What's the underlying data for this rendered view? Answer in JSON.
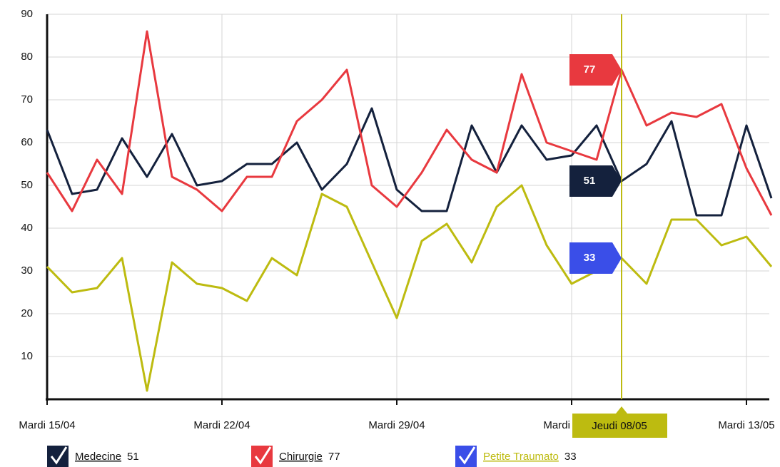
{
  "chart_data": {
    "type": "line",
    "categories": [
      "Mardi 15/04",
      null,
      null,
      null,
      null,
      null,
      null,
      "Mardi 22/04",
      null,
      null,
      null,
      null,
      null,
      null,
      "Mardi 29/04",
      null,
      null,
      null,
      null,
      null,
      null,
      "Mardi 06/05",
      null,
      "Jeudi 08/05",
      null,
      null,
      null,
      null,
      "Mardi 13/05",
      null
    ],
    "cursor_index": 23,
    "ylim": [
      0,
      90
    ],
    "yticks": [
      10,
      20,
      30,
      40,
      50,
      60,
      70,
      80,
      90
    ],
    "grid": true,
    "series": [
      {
        "name": "Medecine",
        "color": "#14213d",
        "marker_color": "#14213d",
        "values": [
          63,
          48,
          49,
          61,
          52,
          62,
          50,
          51,
          55,
          55,
          60,
          49,
          55,
          68,
          49,
          44,
          44,
          64,
          53,
          64,
          56,
          57,
          64,
          51,
          55,
          65,
          43,
          43,
          64,
          47
        ]
      },
      {
        "name": "Chirurgie",
        "color": "#e8393f",
        "marker_color": "#e8393f",
        "values": [
          53,
          44,
          56,
          48,
          86,
          52,
          49,
          44,
          52,
          52,
          65,
          70,
          77,
          50,
          45,
          53,
          63,
          56,
          53,
          76,
          60,
          58,
          56,
          77,
          64,
          67,
          66,
          69,
          54,
          43
        ]
      },
      {
        "name": "Petite Traumato",
        "color": "#bdbb10",
        "marker_color": "#3a4ee8",
        "values": [
          31,
          25,
          26,
          33,
          2,
          32,
          27,
          26,
          23,
          33,
          29,
          48,
          45,
          32,
          19,
          37,
          41,
          32,
          45,
          50,
          36,
          27,
          30,
          33,
          27,
          42,
          42,
          36,
          38,
          31
        ]
      }
    ]
  }
}
